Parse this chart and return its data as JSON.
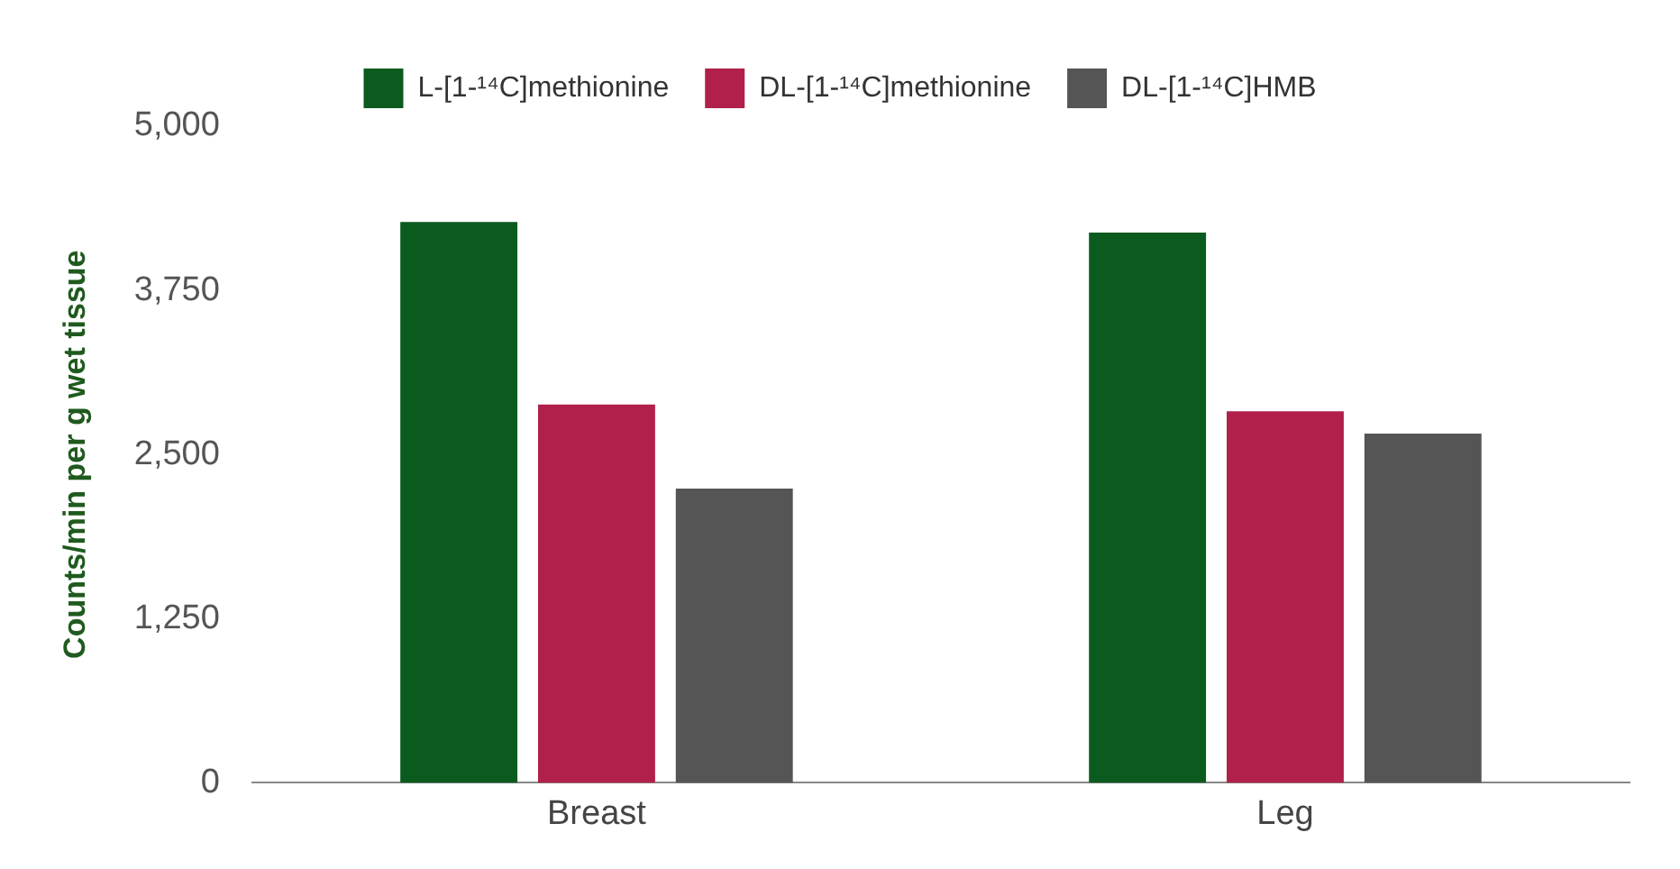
{
  "chart_data": {
    "type": "bar",
    "ylabel": "Counts/min per g wet tissue",
    "categories": [
      "Breast",
      "Leg"
    ],
    "series": [
      {
        "name": "L-[1-¹⁴C]methionine",
        "color": "#0b5a1e",
        "values": [
          4270,
          4190
        ]
      },
      {
        "name": "DL-[1-¹⁴C]methionine",
        "color": "#b0204a",
        "values": [
          2880,
          2830
        ]
      },
      {
        "name": "DL-[1-¹⁴C]HMB",
        "color": "#555555",
        "values": [
          2240,
          2660
        ]
      }
    ],
    "ylim": [
      0,
      5000
    ],
    "yticks": [
      {
        "value": 0,
        "label": "0"
      },
      {
        "value": 1250,
        "label": "1,250"
      },
      {
        "value": 2500,
        "label": "2,500"
      },
      {
        "value": 3750,
        "label": "3,750"
      },
      {
        "value": 5000,
        "label": "5,000"
      }
    ],
    "legend": "top"
  }
}
